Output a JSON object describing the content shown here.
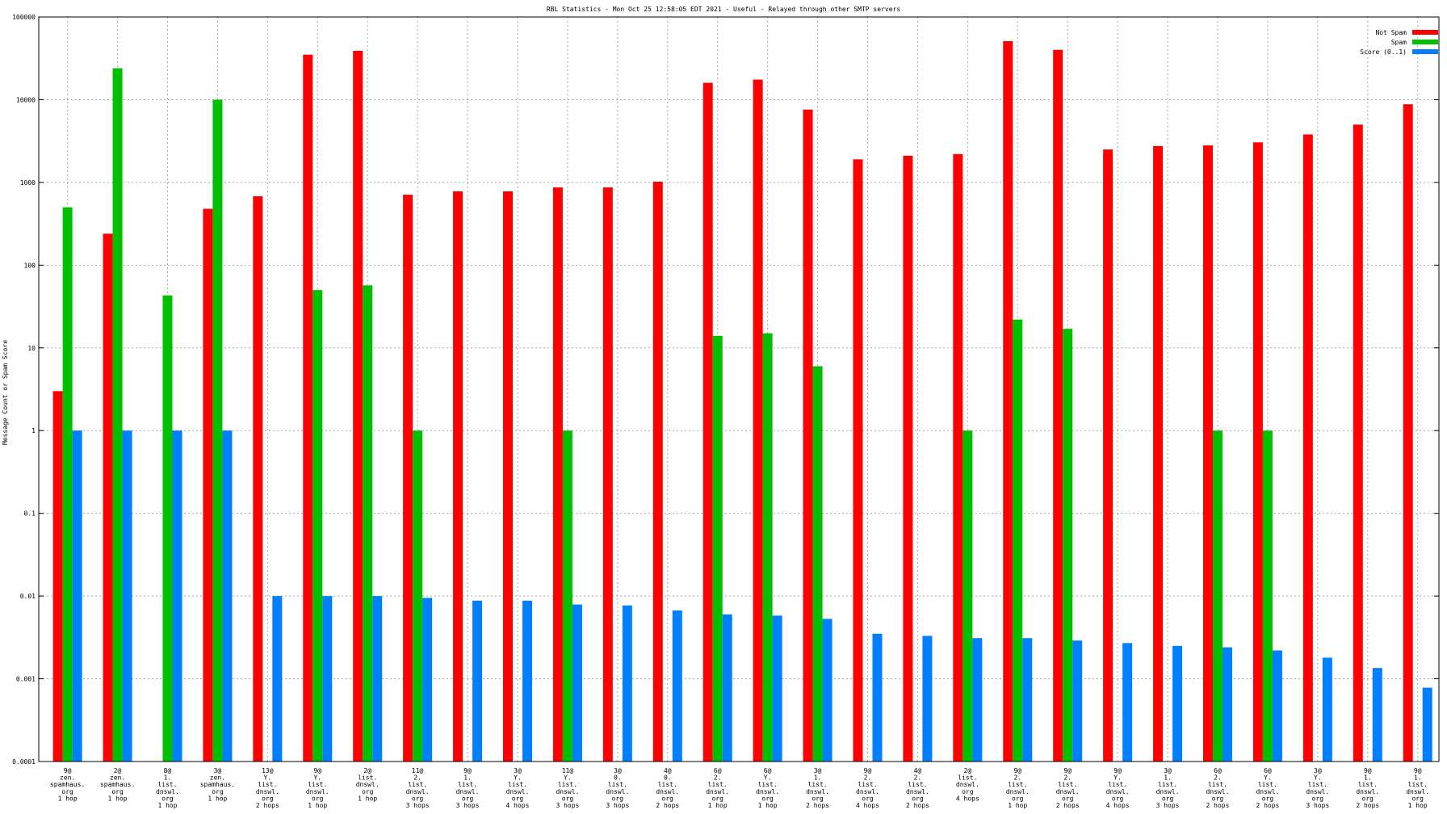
{
  "chart_data": {
    "type": "bar",
    "title": "RBL Statistics - Mon Oct 25 12:58:05 EDT 2021 - Useful - Relayed through other SMTP servers",
    "xlabel": "",
    "ylabel": "Message Count or Spam Score",
    "yscale": "log",
    "ylim": [
      0.0001,
      100000
    ],
    "y_ticks": [
      "0.0001",
      "0.001",
      "0.01",
      "0.1",
      "1",
      "10",
      "100",
      "1000",
      "10000",
      "100000"
    ],
    "grid": true,
    "legend_position": "top-right",
    "categories": [
      [
        "9@",
        "zen.",
        "spamhaus.",
        "org",
        "1 hop"
      ],
      [
        "2@",
        "zen.",
        "spamhaus.",
        "org",
        "1 hop"
      ],
      [
        "8@",
        "1.",
        "list.",
        "dnswl.",
        "org",
        "1 hop"
      ],
      [
        "3@",
        "zen.",
        "spamhaus.",
        "org",
        "1 hop"
      ],
      [
        "13@",
        "Y.",
        "list.",
        "dnswl.",
        "org",
        "2 hops"
      ],
      [
        "9@",
        "Y.",
        "list.",
        "dnswl.",
        "org",
        "1 hop"
      ],
      [
        "2@",
        "list.",
        "dnswl.",
        "org",
        "1 hop"
      ],
      [
        "11@",
        "2.",
        "list.",
        "dnswl.",
        "org",
        "3 hops"
      ],
      [
        "9@",
        "1.",
        "list.",
        "dnswl.",
        "org",
        "3 hops"
      ],
      [
        "3@",
        "Y.",
        "list.",
        "dnswl.",
        "org",
        "4 hops"
      ],
      [
        "11@",
        "Y.",
        "list.",
        "dnswl.",
        "org",
        "3 hops"
      ],
      [
        "3@",
        "0.",
        "list.",
        "dnswl.",
        "org",
        "3 hops"
      ],
      [
        "4@",
        "0.",
        "list.",
        "dnswl.",
        "org",
        "2 hops"
      ],
      [
        "6@",
        "2.",
        "list.",
        "dnswl.",
        "org",
        "1 hop"
      ],
      [
        "6@",
        "Y.",
        "list.",
        "dnswl.",
        "org",
        "1 hop"
      ],
      [
        "3@",
        "1.",
        "list.",
        "dnswl.",
        "org",
        "2 hops"
      ],
      [
        "9@",
        "2.",
        "list.",
        "dnswl.",
        "org",
        "4 hops"
      ],
      [
        "4@",
        "2.",
        "list.",
        "dnswl.",
        "org",
        "2 hops"
      ],
      [
        "2@",
        "list.",
        "dnswl.",
        "org",
        "4 hops"
      ],
      [
        "9@",
        "2.",
        "list.",
        "dnswl.",
        "org",
        "1 hop"
      ],
      [
        "9@",
        "2.",
        "list.",
        "dnswl.",
        "org",
        "2 hops"
      ],
      [
        "9@",
        "Y.",
        "list.",
        "dnswl.",
        "org",
        "4 hops"
      ],
      [
        "3@",
        "1.",
        "list.",
        "dnswl.",
        "org",
        "3 hops"
      ],
      [
        "6@",
        "2.",
        "list.",
        "dnswl.",
        "org",
        "2 hops"
      ],
      [
        "6@",
        "Y.",
        "list.",
        "dnswl.",
        "org",
        "2 hops"
      ],
      [
        "3@",
        "Y.",
        "list.",
        "dnswl.",
        "org",
        "3 hops"
      ],
      [
        "9@",
        "1.",
        "list.",
        "dnswl.",
        "org",
        "2 hops"
      ],
      [
        "9@",
        "1.",
        "list.",
        "dnswl.",
        "org",
        "1 hop"
      ]
    ],
    "series": [
      {
        "name": "Not Spam",
        "color": "#ff0000",
        "values": [
          3,
          240,
          null,
          480,
          680,
          35000,
          39000,
          710,
          780,
          780,
          870,
          870,
          1020,
          16000,
          17500,
          7600,
          1900,
          2100,
          2200,
          51000,
          40000,
          2500,
          2750,
          2800,
          3050,
          3800,
          5000,
          8800
        ]
      },
      {
        "name": "Spam",
        "color": "#00c000",
        "values": [
          500,
          24000,
          43,
          10000,
          null,
          50,
          57,
          1,
          null,
          null,
          1,
          null,
          null,
          14,
          15,
          6,
          null,
          null,
          1,
          22,
          17,
          null,
          null,
          1,
          1,
          null,
          null,
          null
        ]
      },
      {
        "name": "Score (0..1)",
        "color": "#0080ff",
        "values": [
          1,
          1,
          1,
          1,
          0.01,
          0.01,
          0.01,
          0.0095,
          0.0088,
          0.0088,
          0.0079,
          0.0077,
          0.0067,
          0.006,
          0.0058,
          0.0053,
          0.0035,
          0.0033,
          0.0031,
          0.0031,
          0.0029,
          0.0027,
          0.0025,
          0.0024,
          0.0022,
          0.0018,
          0.00135,
          0.00078
        ]
      }
    ]
  }
}
